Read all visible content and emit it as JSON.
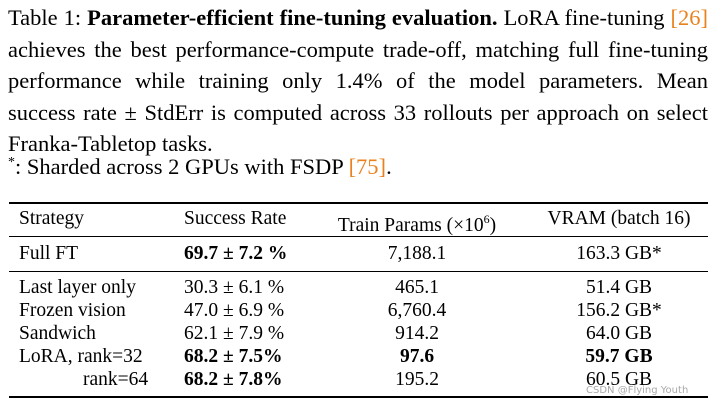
{
  "caption": {
    "label": "Table 1:",
    "title": "Parameter-efficient fine-tuning evaluation.",
    "text_1": "LoRA fine-tuning",
    "cite_1": "[26]",
    "text_2": "achieves the best performance-compute trade-off, matching full fine-tuning performance while training only 1.4% of the model parameters. Mean success rate ± StdErr is computed across 33 rollouts per approach on select Franka-Tabletop tasks."
  },
  "footnote": {
    "marker": "*",
    "text": ": Sharded across 2 GPUs with FSDP",
    "cite": "[75]",
    "end": "."
  },
  "table": {
    "headers": {
      "strategy": "Strategy",
      "success_rate": "Success Rate",
      "train_params": "Train Params (×10",
      "train_params_exp": "6",
      "train_params_close": ")",
      "vram": "VRAM (batch 16)"
    },
    "full_ft": {
      "strategy": "Full FT",
      "success_rate": "69.7 ± 7.2 %",
      "train_params": "7,188.1",
      "vram": "163.3 GB*"
    },
    "rows": [
      {
        "strategy": "Last layer only",
        "success_rate": "30.3 ± 6.1 %",
        "train_params": "465.1",
        "vram": "51.4 GB"
      },
      {
        "strategy": "Frozen vision",
        "success_rate": "47.0 ± 6.9 %",
        "train_params": "6,760.4",
        "vram": "156.2 GB*"
      },
      {
        "strategy": "Sandwich",
        "success_rate": "62.1 ± 7.9 %",
        "train_params": "914.2",
        "vram": "64.0 GB"
      },
      {
        "strategy": "LoRA, rank=32",
        "success_rate": "68.2 ± 7.5%",
        "train_params": "97.6",
        "vram": "59.7 GB"
      },
      {
        "strategy": "rank=64",
        "success_rate": "68.2 ± 7.8%",
        "train_params": "195.2",
        "vram": "60.5 GB"
      }
    ]
  },
  "watermark": "CSDN @Flying Youth"
}
